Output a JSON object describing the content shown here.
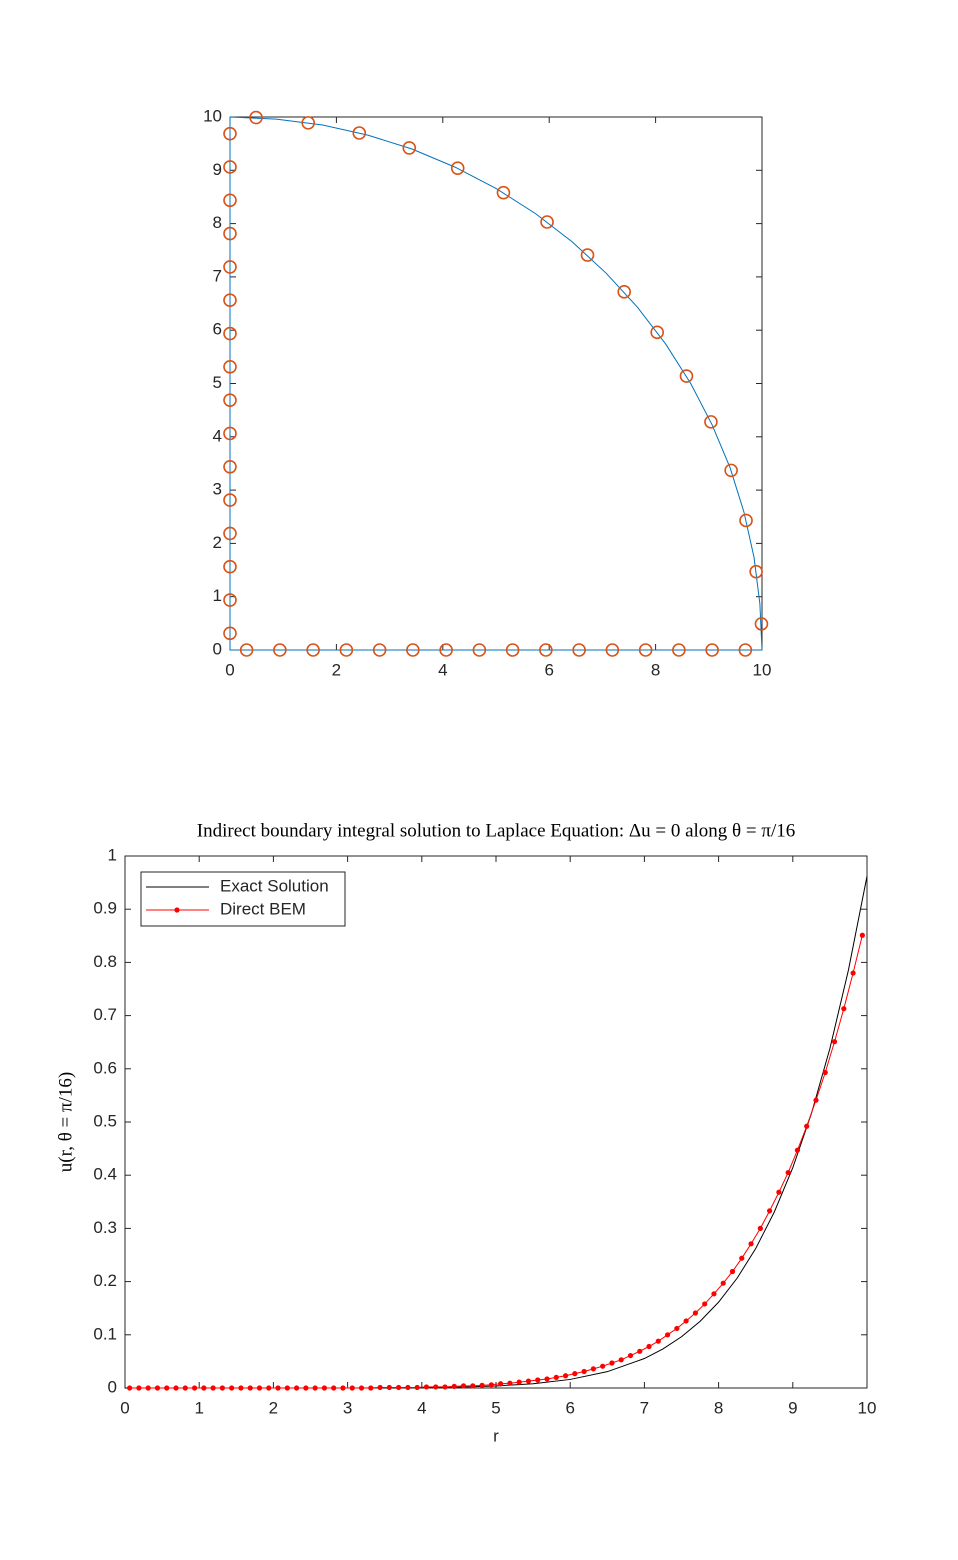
{
  "chart_data": [
    {
      "type": "line",
      "xlim": [
        0,
        10
      ],
      "ylim": [
        0,
        10
      ],
      "xticks": [
        0,
        2,
        4,
        6,
        8,
        10
      ],
      "yticks": [
        0,
        1,
        2,
        3,
        4,
        5,
        6,
        7,
        8,
        9,
        10
      ],
      "series": [
        {
          "color": "#0072BD",
          "linestyle": "-",
          "marker": "none",
          "x": [
            0,
            10,
            9.96,
            9.85,
            9.66,
            9.4,
            9.06,
            8.66,
            8.19,
            7.66,
            7.07,
            6.43,
            5.74,
            5.0,
            4.23,
            3.42,
            2.59,
            1.74,
            0.87,
            0,
            0
          ],
          "values": [
            0,
            0,
            0.87,
            1.74,
            2.59,
            3.42,
            4.23,
            5.0,
            5.74,
            6.43,
            7.07,
            7.66,
            8.19,
            8.66,
            9.06,
            9.4,
            9.66,
            9.85,
            9.96,
            10,
            0
          ]
        },
        {
          "color": "#D95319",
          "linestyle": "none",
          "marker": "o",
          "x": [
            0.3125,
            0.9375,
            1.5625,
            2.1875,
            2.8125,
            3.4375,
            4.0625,
            4.6875,
            5.3125,
            5.9375,
            6.5625,
            7.1875,
            7.8125,
            8.4375,
            9.0625,
            9.6875,
            9.99,
            9.89,
            9.7,
            9.42,
            9.04,
            8.58,
            8.03,
            7.41,
            6.72,
            5.96,
            5.14,
            4.28,
            3.37,
            2.43,
            1.47,
            0.49,
            0,
            0,
            0,
            0,
            0,
            0,
            0,
            0,
            0,
            0,
            0,
            0,
            0,
            0,
            0,
            0
          ],
          "values": [
            0,
            0,
            0,
            0,
            0,
            0,
            0,
            0,
            0,
            0,
            0,
            0,
            0,
            0,
            0,
            0,
            0.49,
            1.47,
            2.43,
            3.37,
            4.28,
            5.14,
            5.96,
            6.72,
            7.41,
            8.03,
            8.58,
            9.04,
            9.42,
            9.7,
            9.89,
            9.99,
            0.3125,
            0.9375,
            1.5625,
            2.1875,
            2.8125,
            3.4375,
            4.0625,
            4.6875,
            5.3125,
            5.9375,
            6.5625,
            7.1875,
            7.8125,
            8.4375,
            9.0625,
            9.6875
          ]
        }
      ]
    },
    {
      "type": "line",
      "title": "Indirect boundary integral solution to Laplace Equation: Δu = 0 along θ = π/16",
      "xlabel": "r",
      "ylabel": "u(r, θ = π/16)",
      "xlim": [
        0,
        10
      ],
      "ylim": [
        0,
        1
      ],
      "xticks": [
        0,
        1,
        2,
        3,
        4,
        5,
        6,
        7,
        8,
        9,
        10
      ],
      "yticks": [
        0,
        0.1,
        0.2,
        0.3,
        0.4,
        0.5,
        0.6,
        0.7,
        0.8,
        0.9,
        1
      ],
      "legend": "upper left",
      "series": [
        {
          "name": "Exact Solution",
          "color": "#000000",
          "linestyle": "-",
          "marker": "none",
          "x": [
            0,
            0.5,
            1,
            1.5,
            2,
            2.5,
            3,
            3.5,
            4,
            4.5,
            5,
            5.5,
            6,
            6.5,
            7,
            7.25,
            7.5,
            7.75,
            8,
            8.25,
            8.5,
            8.75,
            9,
            9.25,
            9.5,
            9.75,
            10
          ],
          "values": [
            0,
            0,
            0,
            0,
            0,
            0,
            0.0001,
            0.0002,
            0.0006,
            0.0016,
            0.0038,
            0.0081,
            0.0161,
            0.0307,
            0.0554,
            0.0734,
            0.0963,
            0.1252,
            0.1614,
            0.2065,
            0.2621,
            0.3306,
            0.4141,
            0.5156,
            0.6382,
            0.7857,
            0.962
          ]
        },
        {
          "name": "Direct BEM",
          "color": "#FF0000",
          "linestyle": "-",
          "marker": ".",
          "x": [
            0.0625,
            0.1875,
            0.3125,
            0.4375,
            0.5625,
            0.6875,
            0.8125,
            0.9375,
            1.0625,
            1.1875,
            1.3125,
            1.4375,
            1.5625,
            1.6875,
            1.8125,
            1.9375,
            2.0625,
            2.1875,
            2.3125,
            2.4375,
            2.5625,
            2.6875,
            2.8125,
            2.9375,
            3.0625,
            3.1875,
            3.3125,
            3.4375,
            3.5625,
            3.6875,
            3.8125,
            3.9375,
            4.0625,
            4.1875,
            4.3125,
            4.4375,
            4.5625,
            4.6875,
            4.8125,
            4.9375,
            5.0625,
            5.1875,
            5.3125,
            5.4375,
            5.5625,
            5.6875,
            5.8125,
            5.9375,
            6.0625,
            6.1875,
            6.3125,
            6.4375,
            6.5625,
            6.6875,
            6.8125,
            6.9375,
            7.0625,
            7.1875,
            7.3125,
            7.4375,
            7.5625,
            7.6875,
            7.8125,
            7.9375,
            8.0625,
            8.1875,
            8.3125,
            8.4375,
            8.5625,
            8.6875,
            8.8125,
            8.9375,
            9.0625,
            9.1875,
            9.3125,
            9.4375,
            9.5625,
            9.6875,
            9.8125,
            9.9375
          ],
          "values": [
            0,
            0,
            0,
            0,
            0,
            0,
            0,
            0,
            0,
            0,
            0,
            0,
            0,
            0,
            0,
            0,
            0,
            0,
            0,
            0,
            0,
            0,
            0,
            0,
            0,
            0,
            0,
            0.001,
            0.001,
            0.001,
            0.001,
            0.001,
            0.002,
            0.002,
            0.002,
            0.003,
            0.004,
            0.004,
            0.005,
            0.006,
            0.008,
            0.009,
            0.011,
            0.013,
            0.015,
            0.017,
            0.02,
            0.023,
            0.027,
            0.031,
            0.036,
            0.041,
            0.047,
            0.053,
            0.061,
            0.069,
            0.078,
            0.088,
            0.1,
            0.112,
            0.126,
            0.141,
            0.158,
            0.177,
            0.197,
            0.219,
            0.244,
            0.271,
            0.3,
            0.333,
            0.368,
            0.405,
            0.447,
            0.492,
            0.541,
            0.593,
            0.651,
            0.713,
            0.78,
            0.851
          ]
        }
      ]
    }
  ]
}
